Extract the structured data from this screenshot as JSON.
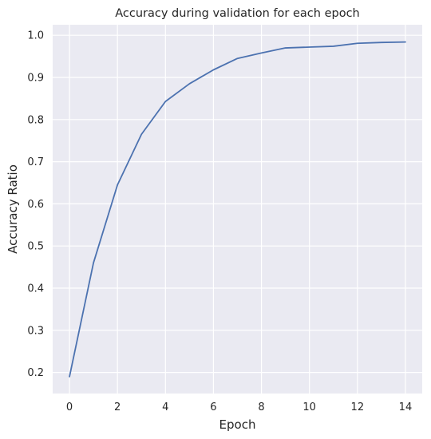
{
  "chart_data": {
    "type": "line",
    "title": "Accuracy during validation for each epoch",
    "xlabel": "Epoch",
    "ylabel": "Accuracy Ratio",
    "x": [
      0,
      1,
      2,
      3,
      4,
      5,
      6,
      7,
      8,
      9,
      10,
      11,
      12,
      13,
      14
    ],
    "series": [
      {
        "values": [
          0.19,
          0.46,
          0.645,
          0.765,
          0.843,
          0.885,
          0.918,
          0.945,
          0.958,
          0.97,
          0.972,
          0.974,
          0.981,
          0.983,
          0.984
        ],
        "color": "#4c72b0"
      }
    ],
    "xlim": [
      -0.7,
      14.7
    ],
    "ylim": [
      0.15,
      1.025
    ],
    "xticks": [
      0,
      2,
      4,
      6,
      8,
      10,
      12,
      14
    ],
    "yticks": [
      0.2,
      0.3,
      0.4,
      0.5,
      0.6,
      0.7,
      0.8,
      0.9,
      1.0
    ],
    "ytick_labels": [
      "0.2",
      "0.3",
      "0.4",
      "0.5",
      "0.6",
      "0.7",
      "0.8",
      "0.9",
      "1.0"
    ],
    "grid": true,
    "background": "#eaeaf2",
    "grid_color": "#ffffff"
  }
}
